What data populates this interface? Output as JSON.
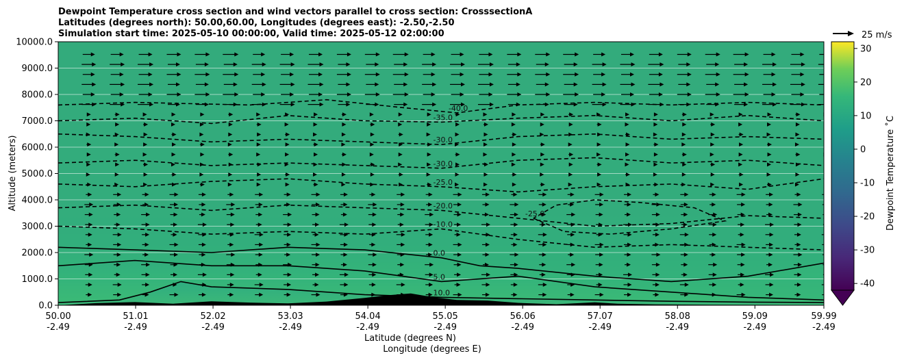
{
  "chart_data": {
    "type": "heatmap",
    "title_lines": [
      "Dewpoint Temperature cross section and wind vectors parallel to cross section: CrosssectionA",
      "Latitudes (degrees north): 50.00,60.00, Longitudes (degrees east): -2.50,-2.50",
      "Simulation start time: 2025-05-10 00:00:00, Valid time: 2025-05-12 02:00:00"
    ],
    "xlabel_lat": "Latitude (degrees N)",
    "xlabel_lon": "Longitude (degrees E)",
    "ylabel": "Altitude (meters)",
    "xlim": [
      50.0,
      59.99
    ],
    "ylim": [
      0,
      10000
    ],
    "y_ticks": [
      "0.0",
      "1000.0",
      "2000.0",
      "3000.0",
      "4000.0",
      "5000.0",
      "6000.0",
      "7000.0",
      "8000.0",
      "9000.0",
      "10000.0"
    ],
    "x_ticks": [
      {
        "lat": "50.00",
        "lon": "-2.49"
      },
      {
        "lat": "51.01",
        "lon": "-2.49"
      },
      {
        "lat": "52.02",
        "lon": "-2.49"
      },
      {
        "lat": "53.03",
        "lon": "-2.49"
      },
      {
        "lat": "54.04",
        "lon": "-2.49"
      },
      {
        "lat": "55.05",
        "lon": "-2.49"
      },
      {
        "lat": "56.06",
        "lon": "-2.49"
      },
      {
        "lat": "57.07",
        "lon": "-2.49"
      },
      {
        "lat": "58.08",
        "lon": "-2.49"
      },
      {
        "lat": "59.09",
        "lon": "-2.49"
      },
      {
        "lat": "59.99",
        "lon": "-2.49"
      }
    ],
    "grid": "horizontal",
    "colorbar": {
      "label": "Dewpoint Temperature ˚C",
      "colormap": "viridis",
      "range": [
        -42,
        32
      ],
      "ticks": [
        "-40",
        "-30",
        "-20",
        "-10",
        "0",
        "10",
        "20",
        "30"
      ],
      "extend": "min"
    },
    "wind_key": {
      "label": "25 m/s"
    },
    "contours": [
      {
        "label": "-40.0",
        "level": -40,
        "style": "dashed",
        "points": [
          [
            50.0,
            7600
          ],
          [
            51.0,
            7700
          ],
          [
            52.5,
            7600
          ],
          [
            53.5,
            7800
          ],
          [
            54.5,
            7500
          ],
          [
            55.2,
            7300
          ],
          [
            56.0,
            7600
          ],
          [
            57.0,
            7700
          ],
          [
            58.0,
            7600
          ],
          [
            59.0,
            7700
          ],
          [
            59.99,
            7600
          ]
        ]
      },
      {
        "label": "-35.0",
        "level": -35,
        "style": "dashed",
        "points": [
          [
            50.0,
            7000
          ],
          [
            51.0,
            7100
          ],
          [
            52.0,
            6900
          ],
          [
            53.0,
            7200
          ],
          [
            54.0,
            7000
          ],
          [
            55.0,
            6950
          ],
          [
            56.0,
            7100
          ],
          [
            57.0,
            7200
          ],
          [
            58.0,
            7000
          ],
          [
            59.0,
            7200
          ],
          [
            59.99,
            7000
          ]
        ]
      },
      {
        "label": "-30.0",
        "level": -30,
        "style": "dashed",
        "points": [
          [
            50.0,
            6500
          ],
          [
            51.0,
            6400
          ],
          [
            52.0,
            6200
          ],
          [
            53.0,
            6300
          ],
          [
            54.0,
            6200
          ],
          [
            55.0,
            6100
          ],
          [
            56.0,
            6400
          ],
          [
            57.0,
            6500
          ],
          [
            58.0,
            6300
          ],
          [
            59.0,
            6400
          ],
          [
            59.99,
            6300
          ]
        ]
      },
      {
        "label": "-30.0",
        "level": -30,
        "style": "dashed",
        "points": [
          [
            50.0,
            5400
          ],
          [
            51.0,
            5500
          ],
          [
            52.0,
            5300
          ],
          [
            53.0,
            5400
          ],
          [
            54.0,
            5300
          ],
          [
            55.0,
            5200
          ],
          [
            56.0,
            5500
          ],
          [
            57.0,
            5600
          ],
          [
            58.0,
            5400
          ],
          [
            59.0,
            5500
          ],
          [
            59.99,
            5300
          ]
        ]
      },
      {
        "label": "-25.0",
        "level": -25,
        "style": "dashed",
        "points": [
          [
            50.0,
            4600
          ],
          [
            51.0,
            4500
          ],
          [
            52.0,
            4700
          ],
          [
            53.0,
            4800
          ],
          [
            54.0,
            4600
          ],
          [
            55.0,
            4500
          ],
          [
            56.0,
            4300
          ],
          [
            57.0,
            4500
          ],
          [
            58.0,
            4600
          ],
          [
            59.0,
            4400
          ],
          [
            59.99,
            4800
          ]
        ]
      },
      {
        "label": "-25.0",
        "level": -25,
        "style": "dashed",
        "points": [
          [
            56.2,
            3300
          ],
          [
            56.6,
            2800
          ],
          [
            57.2,
            2700
          ],
          [
            58.0,
            2900
          ],
          [
            58.7,
            3200
          ],
          [
            58.3,
            3700
          ],
          [
            57.6,
            3900
          ],
          [
            57.0,
            4000
          ],
          [
            56.5,
            3800
          ],
          [
            56.2,
            3300
          ]
        ]
      },
      {
        "label": "-20.0",
        "level": -20,
        "style": "dashed",
        "points": [
          [
            50.0,
            3700
          ],
          [
            51.0,
            3800
          ],
          [
            52.0,
            3600
          ],
          [
            53.0,
            3800
          ],
          [
            54.0,
            3700
          ],
          [
            55.0,
            3600
          ],
          [
            56.0,
            3300
          ],
          [
            57.0,
            3000
          ],
          [
            58.0,
            3100
          ],
          [
            59.0,
            3400
          ],
          [
            59.99,
            3300
          ]
        ]
      },
      {
        "label": "-10.0",
        "level": -10,
        "style": "dashed",
        "points": [
          [
            50.0,
            3000
          ],
          [
            51.0,
            2900
          ],
          [
            52.0,
            2700
          ],
          [
            53.0,
            2800
          ],
          [
            54.0,
            2700
          ],
          [
            55.0,
            2900
          ],
          [
            56.0,
            2500
          ],
          [
            57.0,
            2200
          ],
          [
            58.0,
            2300
          ],
          [
            59.0,
            2200
          ],
          [
            59.99,
            2100
          ]
        ]
      },
      {
        "label": "0.0",
        "level": 0,
        "style": "solid",
        "points": [
          [
            50.0,
            2200
          ],
          [
            51.0,
            2100
          ],
          [
            52.0,
            2000
          ],
          [
            53.0,
            2200
          ],
          [
            54.0,
            2100
          ],
          [
            55.0,
            1800
          ],
          [
            55.5,
            1500
          ],
          [
            56.0,
            1400
          ],
          [
            57.0,
            1100
          ],
          [
            58.0,
            900
          ],
          [
            59.0,
            1100
          ],
          [
            59.99,
            1600
          ]
        ]
      },
      {
        "label": "5.0",
        "level": 5,
        "style": "solid",
        "points": [
          [
            50.0,
            1500
          ],
          [
            51.0,
            1700
          ],
          [
            52.0,
            1500
          ],
          [
            53.0,
            1500
          ],
          [
            54.0,
            1300
          ],
          [
            55.0,
            900
          ],
          [
            56.0,
            1100
          ],
          [
            57.0,
            700
          ],
          [
            58.0,
            500
          ],
          [
            59.0,
            300
          ],
          [
            59.99,
            200
          ]
        ]
      },
      {
        "label": "10.0",
        "level": 10,
        "style": "solid",
        "points": [
          [
            50.0,
            100
          ],
          [
            50.8,
            200
          ],
          [
            51.2,
            500
          ],
          [
            51.6,
            900
          ],
          [
            52.0,
            700
          ],
          [
            53.0,
            600
          ],
          [
            54.0,
            400
          ],
          [
            55.0,
            300
          ],
          [
            56.0,
            250
          ],
          [
            57.0,
            200
          ],
          [
            58.0,
            150
          ],
          [
            59.0,
            120
          ],
          [
            59.99,
            100
          ]
        ]
      }
    ],
    "terrain": [
      [
        50.0,
        0
      ],
      [
        50.5,
        80
      ],
      [
        51.0,
        120
      ],
      [
        51.5,
        60
      ],
      [
        52.0,
        150
      ],
      [
        52.5,
        100
      ],
      [
        53.0,
        70
      ],
      [
        53.5,
        140
      ],
      [
        54.0,
        280
      ],
      [
        54.3,
        380
      ],
      [
        54.6,
        450
      ],
      [
        54.9,
        300
      ],
      [
        55.2,
        200
      ],
      [
        55.6,
        180
      ],
      [
        56.0,
        90
      ],
      [
        56.5,
        40
      ],
      [
        57.0,
        110
      ],
      [
        57.3,
        60
      ],
      [
        57.8,
        30
      ],
      [
        58.5,
        20
      ],
      [
        59.99,
        10
      ]
    ]
  }
}
